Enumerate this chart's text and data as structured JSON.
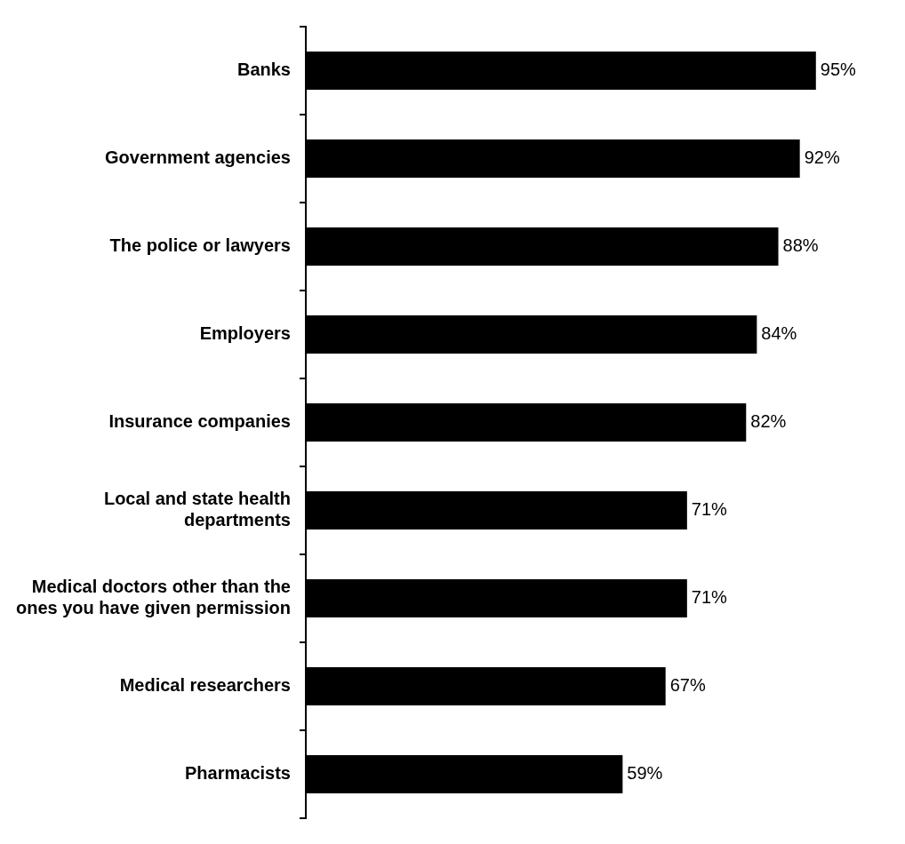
{
  "chart_data": {
    "type": "bar",
    "orientation": "horizontal",
    "categories": [
      "Banks",
      "Government agencies",
      "The police or lawyers",
      "Employers",
      "Insurance companies",
      "Local and state health departments",
      "Medical doctors other than the ones you have given permission",
      "Medical researchers",
      "Pharmacists"
    ],
    "values": [
      95,
      92,
      88,
      84,
      82,
      71,
      71,
      67,
      59
    ],
    "value_labels": [
      "95%",
      "92%",
      "88%",
      "84%",
      "82%",
      "71%",
      "71%",
      "67%",
      "59%"
    ],
    "color": "#000000",
    "legend": false
  }
}
